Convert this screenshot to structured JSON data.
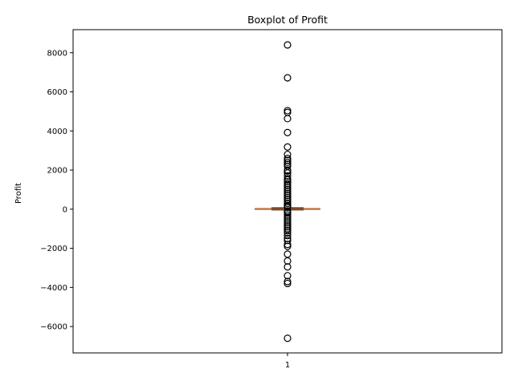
{
  "chart_data": {
    "type": "boxplot",
    "title": "Boxplot of Profit",
    "xlabel": "",
    "ylabel": "Profit",
    "categories": [
      "1"
    ],
    "ylim": [
      -7350,
      9180
    ],
    "xlim": [
      0.5,
      1.5
    ],
    "yticks": [
      -6000,
      -4000,
      -2000,
      0,
      2000,
      4000,
      6000,
      8000
    ],
    "ytick_labels": [
      "−6000",
      "−4000",
      "−2000",
      "0",
      "2000",
      "4000",
      "6000",
      "8000"
    ],
    "grid": false,
    "series": [
      {
        "category": "1",
        "q1": 2,
        "median": 9,
        "q3": 29,
        "whisker_low": -39,
        "whisker_high": 70,
        "outliers": [
          8400,
          6720,
          5040,
          4950,
          4630,
          3920,
          3180,
          2800,
          2600,
          2500,
          2400,
          2300,
          2200,
          2000,
          1950,
          1850,
          1700,
          1550,
          1500,
          1400,
          1300,
          1200,
          1100,
          1000,
          900,
          800,
          700,
          600,
          500,
          400,
          300,
          200,
          150,
          100,
          -100,
          -150,
          -200,
          -300,
          -400,
          -500,
          -600,
          -700,
          -800,
          -900,
          -1000,
          -1100,
          -1200,
          -1350,
          -1500,
          -1600,
          -1800,
          -1900,
          -2300,
          -2650,
          -2950,
          -3400,
          -3700,
          -3800,
          -6600
        ]
      }
    ],
    "colors": {
      "box": "#000000",
      "median": "#e9772a",
      "outlier_edge": "#000000",
      "axes": "#000000"
    }
  }
}
